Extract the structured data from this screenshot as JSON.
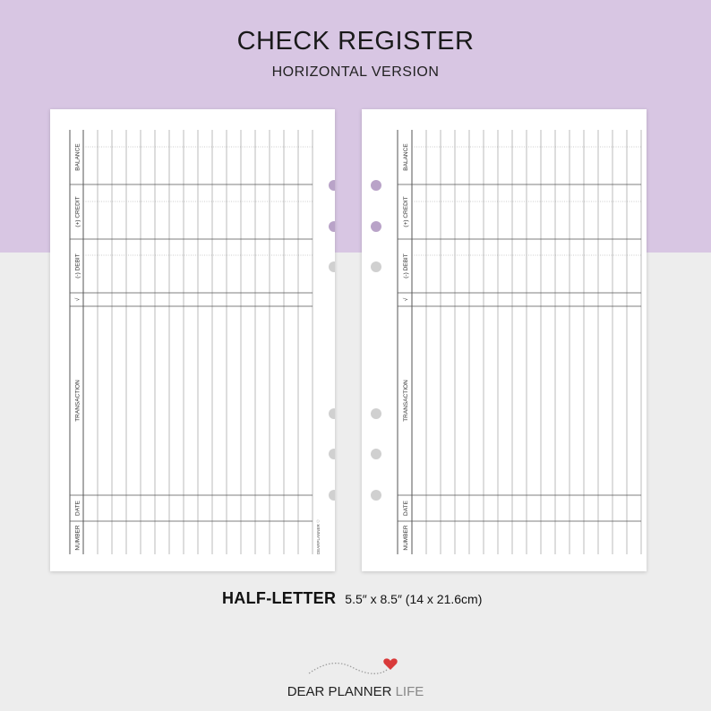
{
  "header": {
    "title": "CHECK REGISTER",
    "subtitle": "HORIZONTAL VERSION"
  },
  "pages": {
    "columns": [
      "BALANCE",
      "(+) CREDIT",
      "(-) DEBIT",
      "√",
      "TRANSACTION",
      "DATE",
      "NUMBER"
    ],
    "entry_rows": 16,
    "footer_mark": "DEARPLANNER ♡"
  },
  "size": {
    "name": "HALF-LETTER",
    "dims": "5.5″ x 8.5″ (14 x 21.6cm)"
  },
  "brand": {
    "main": "DEAR PLANNER",
    "accent": "LIFE"
  },
  "colors": {
    "top_band": "#d8c6e3",
    "background": "#ededed",
    "heart": "#d93a3a",
    "hole_purple": "#b9a3c8",
    "hole_grey": "#d0d0d0"
  }
}
